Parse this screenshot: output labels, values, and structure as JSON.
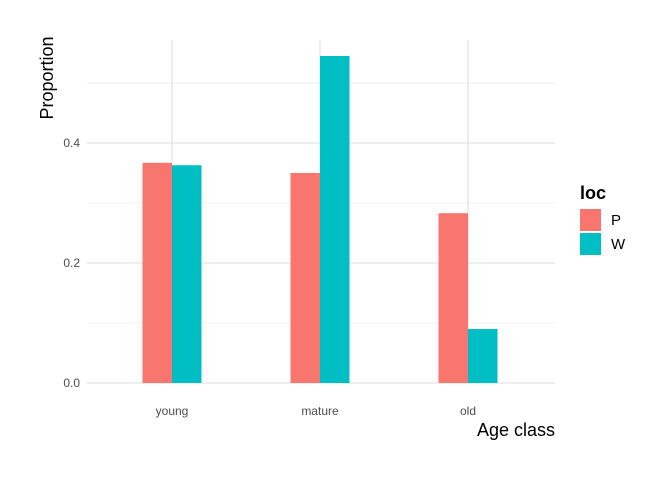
{
  "chart_data": {
    "type": "bar",
    "xlabel": "Age class",
    "ylabel": "Proportion",
    "categories": [
      "young",
      "mature",
      "old"
    ],
    "series": [
      {
        "name": "P",
        "color": "#F8766D",
        "values": [
          0.367,
          0.35,
          0.283
        ]
      },
      {
        "name": "W",
        "color": "#00BFC4",
        "values": [
          0.363,
          0.545,
          0.09
        ]
      }
    ],
    "ylim": [
      0,
      0.55
    ],
    "yticks": [
      0.0,
      0.2,
      0.4
    ],
    "ytick_labels": [
      "0.0",
      "0.2",
      "0.4"
    ],
    "grid": true,
    "legend": {
      "title": "loc",
      "placement": "right"
    }
  }
}
